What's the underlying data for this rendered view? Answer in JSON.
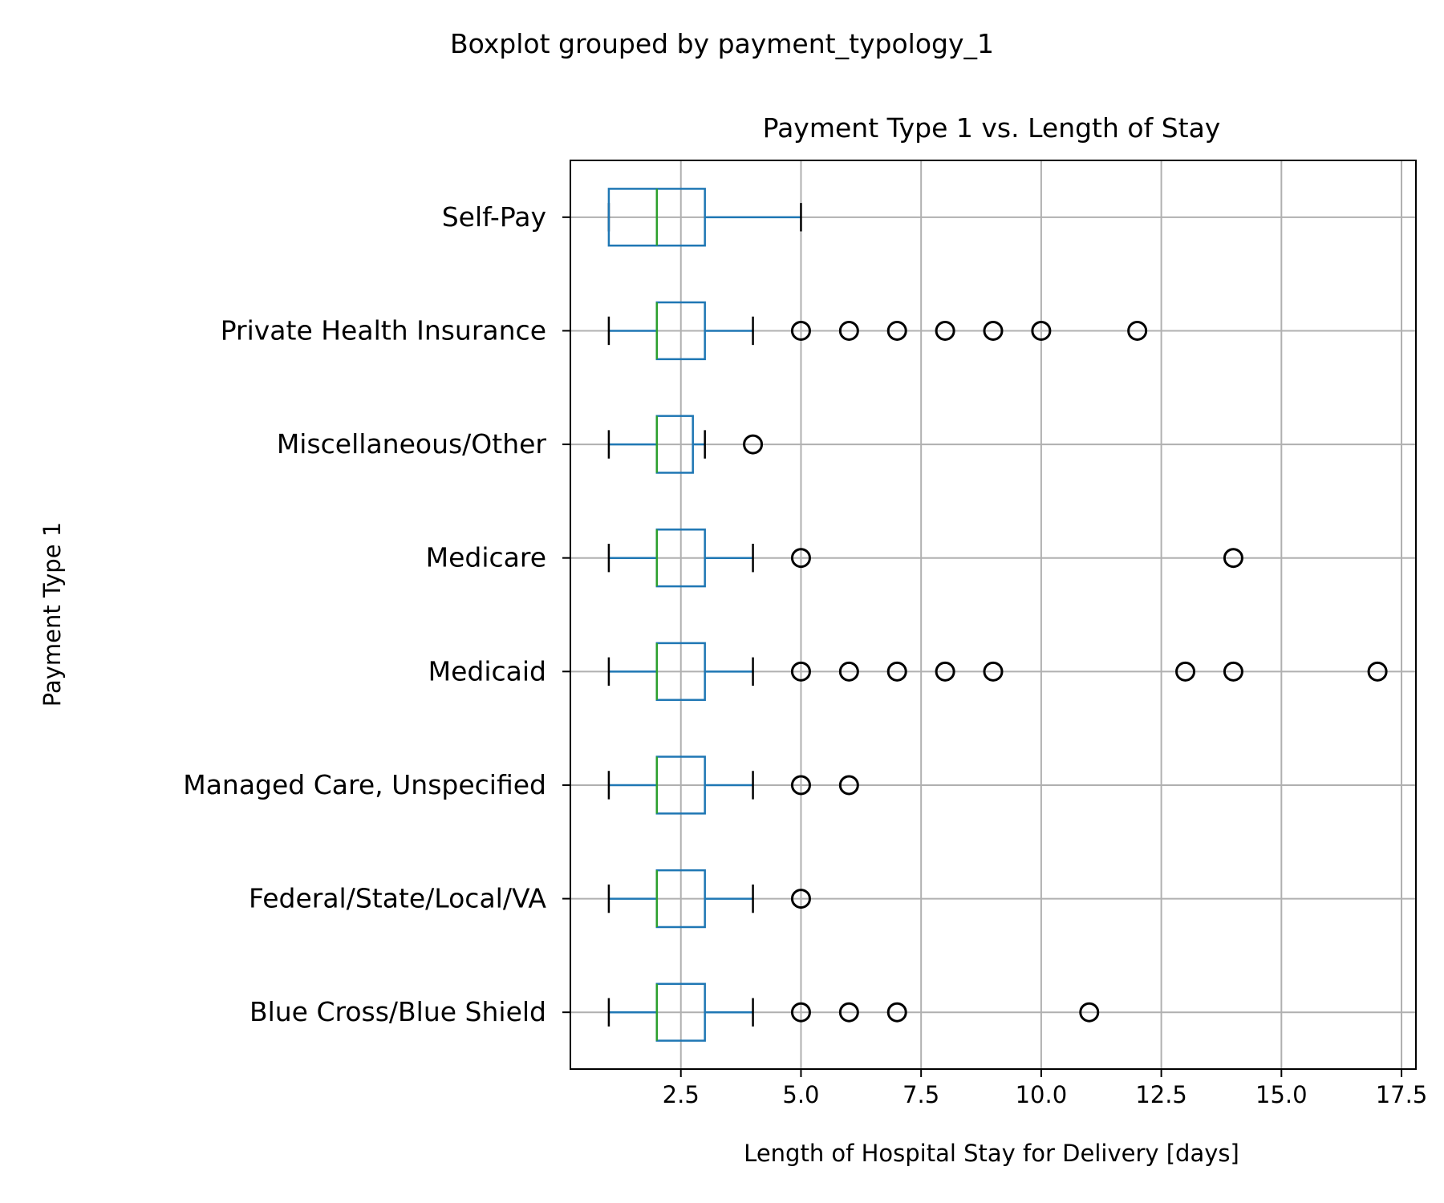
{
  "chart_data": {
    "type": "boxplot",
    "suptitle": "Boxplot grouped by payment_typology_1",
    "title": "Payment Type 1 vs. Length of Stay",
    "xlabel": "Length of Hospital Stay for Delivery [days]",
    "ylabel": "Payment Type 1",
    "orientation": "horizontal",
    "xlim": [
      0.2,
      17.8
    ],
    "xticks": [
      2.5,
      5.0,
      7.5,
      10.0,
      12.5,
      15.0,
      17.5
    ],
    "xtick_labels": [
      "2.5",
      "5.0",
      "7.5",
      "10.0",
      "12.5",
      "15.0",
      "17.5"
    ],
    "grid": true,
    "colors": {
      "box": "#1f77b4",
      "median": "#2ca02c",
      "outlier": "#000000",
      "grid": "#b0b0b0"
    },
    "categories": [
      "Blue Cross/Blue Shield",
      "Federal/State/Local/VA",
      "Managed Care, Unspecified",
      "Medicaid",
      "Medicare",
      "Miscellaneous/Other",
      "Private Health Insurance",
      "Self-Pay"
    ],
    "boxes": [
      {
        "category": "Blue Cross/Blue Shield",
        "whislo": 1,
        "q1": 2,
        "median": 2,
        "q3": 3,
        "whishi": 4,
        "fliers": [
          5,
          6,
          7,
          11
        ]
      },
      {
        "category": "Federal/State/Local/VA",
        "whislo": 1,
        "q1": 2,
        "median": 2,
        "q3": 3,
        "whishi": 4,
        "fliers": [
          5
        ]
      },
      {
        "category": "Managed Care, Unspecified",
        "whislo": 1,
        "q1": 2,
        "median": 2,
        "q3": 3,
        "whishi": 4,
        "fliers": [
          5,
          6
        ]
      },
      {
        "category": "Medicaid",
        "whislo": 1,
        "q1": 2,
        "median": 2,
        "q3": 3,
        "whishi": 4,
        "fliers": [
          5,
          6,
          7,
          8,
          9,
          13,
          14,
          17
        ]
      },
      {
        "category": "Medicare",
        "whislo": 1,
        "q1": 2,
        "median": 2,
        "q3": 3,
        "whishi": 4,
        "fliers": [
          5,
          14
        ]
      },
      {
        "category": "Miscellaneous/Other",
        "whislo": 1,
        "q1": 2,
        "median": 2,
        "q3": 2.75,
        "whishi": 3,
        "fliers": [
          4
        ]
      },
      {
        "category": "Private Health Insurance",
        "whislo": 1,
        "q1": 2,
        "median": 2,
        "q3": 3,
        "whishi": 4,
        "fliers": [
          5,
          6,
          7,
          8,
          9,
          10,
          12
        ]
      },
      {
        "category": "Self-Pay",
        "whislo": 1,
        "q1": 1,
        "median": 2,
        "q3": 3,
        "whishi": 5,
        "fliers": []
      }
    ]
  }
}
